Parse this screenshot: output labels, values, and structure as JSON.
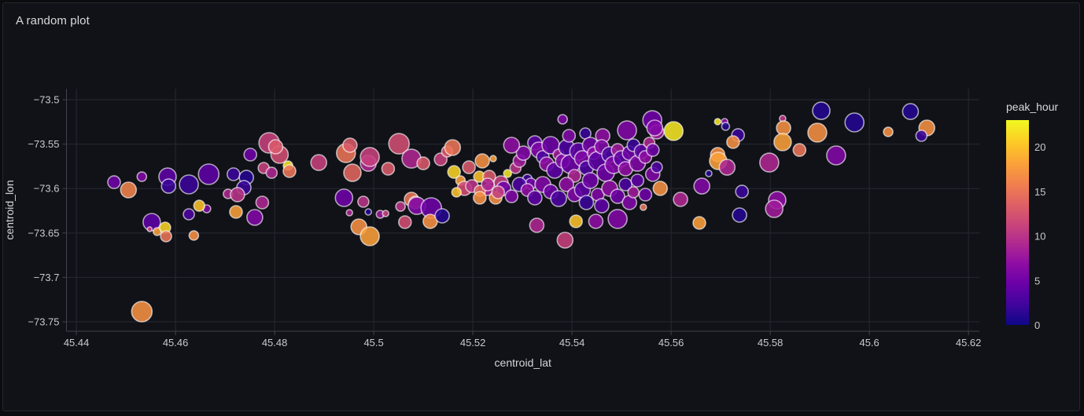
{
  "panel": {
    "title": "A random plot"
  },
  "colors": {
    "page_bg": "#0b0c0f",
    "panel_bg": "#111218",
    "panel_border": "#25272e",
    "grid": "#262932",
    "axis_line": "#3f434b",
    "tick_text": "#c8c9cb",
    "axis_title_text": "#d5d6d8",
    "title_text": "#d8d9da",
    "bubble_stroke": "rgba(255,255,255,0.62)"
  },
  "chart_data": {
    "type": "scatter",
    "title": "A random plot",
    "xlabel": "centroid_lat",
    "ylabel": "centroid_lon",
    "color_label": "peak_hour",
    "grid": true,
    "x_range": [
      45.438,
      45.6222
    ],
    "y_range": [
      -73.7606,
      -73.4876
    ],
    "x_tick_values": [
      45.44,
      45.46,
      45.48,
      45.5,
      45.52,
      45.54,
      45.56,
      45.58,
      45.6,
      45.62
    ],
    "x_tick_labels": [
      "45.44",
      "45.46",
      "45.48",
      "45.5",
      "45.52",
      "45.54",
      "45.56",
      "45.58",
      "45.6",
      "45.62"
    ],
    "y_tick_values": [
      -73.5,
      -73.55,
      -73.6,
      -73.65,
      -73.7,
      -73.75
    ],
    "y_tick_labels": [
      "−73.5",
      "−73.55",
      "−73.6",
      "−73.65",
      "−73.7",
      "−73.75"
    ],
    "color_range": [
      0,
      23
    ],
    "colorbar_tick_values": [
      0,
      5,
      10,
      15,
      20
    ],
    "colorbar_tick_labels": [
      "0",
      "5",
      "10",
      "15",
      "20"
    ],
    "colorscale": [
      [
        0.0,
        "#0d0887"
      ],
      [
        0.1,
        "#41049d"
      ],
      [
        0.2,
        "#6a00a8"
      ],
      [
        0.3,
        "#8f0da4"
      ],
      [
        0.4,
        "#b12a90"
      ],
      [
        0.5,
        "#cc4778"
      ],
      [
        0.6,
        "#e16462"
      ],
      [
        0.7,
        "#f2844b"
      ],
      [
        0.8,
        "#fca636"
      ],
      [
        0.9,
        "#fcce25"
      ],
      [
        1.0,
        "#f0f921"
      ]
    ],
    "point_fields": [
      "centroid_lat",
      "centroid_lon",
      "peak_hour",
      "size_px"
    ],
    "points": [
      [
        45.4476,
        -73.5928,
        5,
        8
      ],
      [
        45.4505,
        -73.6016,
        16,
        10
      ],
      [
        45.4532,
        -73.5866,
        6,
        6
      ],
      [
        45.4584,
        -73.5866,
        4,
        11
      ],
      [
        45.4586,
        -73.5972,
        2,
        9
      ],
      [
        45.4552,
        -73.6378,
        4,
        11
      ],
      [
        45.4548,
        -73.6458,
        11,
        3
      ],
      [
        45.4563,
        -73.6484,
        18,
        5
      ],
      [
        45.4579,
        -73.644,
        21,
        7
      ],
      [
        45.4581,
        -73.6537,
        15,
        7
      ],
      [
        45.4532,
        -73.7385,
        17,
        13
      ],
      [
        45.4627,
        -73.5954,
        2,
        12
      ],
      [
        45.4667,
        -73.5839,
        4,
        13
      ],
      [
        45.4637,
        -73.6528,
        17,
        6
      ],
      [
        45.4627,
        -73.629,
        3,
        7
      ],
      [
        45.4663,
        -73.6228,
        6,
        5
      ],
      [
        45.4648,
        -73.6193,
        20,
        7
      ],
      [
        45.4706,
        -73.606,
        9,
        6
      ],
      [
        45.4717,
        -73.5839,
        2,
        8
      ],
      [
        45.4743,
        -73.5875,
        1,
        9
      ],
      [
        45.4738,
        -73.599,
        2,
        9
      ],
      [
        45.4725,
        -73.6069,
        10,
        9
      ],
      [
        45.4722,
        -73.6263,
        18,
        8
      ],
      [
        45.476,
        -73.6325,
        6,
        10
      ],
      [
        45.4775,
        -73.6157,
        9,
        8
      ],
      [
        45.4789,
        -73.5486,
        11,
        13
      ],
      [
        45.481,
        -73.5618,
        12,
        11
      ],
      [
        45.4802,
        -73.553,
        13,
        9
      ],
      [
        45.4751,
        -73.5618,
        5,
        8
      ],
      [
        45.4778,
        -73.5768,
        11,
        7
      ],
      [
        45.4794,
        -73.5822,
        9,
        7
      ],
      [
        45.4827,
        -73.5742,
        22,
        6
      ],
      [
        45.483,
        -73.5804,
        15,
        8
      ],
      [
        45.4889,
        -73.5707,
        11,
        10
      ],
      [
        45.4944,
        -73.5601,
        15,
        12
      ],
      [
        45.4952,
        -73.5512,
        13,
        9
      ],
      [
        45.4957,
        -73.5822,
        14,
        11
      ],
      [
        45.4989,
        -73.5716,
        9,
        10
      ],
      [
        45.4992,
        -73.5645,
        11,
        12
      ],
      [
        45.5029,
        -73.5777,
        13,
        8
      ],
      [
        45.5051,
        -73.5495,
        12,
        13
      ],
      [
        45.5076,
        -73.5663,
        9,
        12
      ],
      [
        45.51,
        -73.5716,
        13,
        8
      ],
      [
        45.5135,
        -73.5671,
        11,
        8
      ],
      [
        45.5148,
        -73.5583,
        13,
        7
      ],
      [
        45.5159,
        -73.5539,
        15,
        10
      ],
      [
        45.5162,
        -73.5813,
        21,
        8
      ],
      [
        45.5175,
        -73.591,
        18,
        6
      ],
      [
        45.5192,
        -73.576,
        13,
        8
      ],
      [
        45.5213,
        -73.5866,
        20,
        7
      ],
      [
        45.5219,
        -73.5689,
        17,
        9
      ],
      [
        45.5241,
        -73.5663,
        18,
        4
      ],
      [
        45.5233,
        -73.5866,
        13,
        8
      ],
      [
        45.5257,
        -73.5936,
        11,
        9
      ],
      [
        45.527,
        -73.583,
        22,
        5
      ],
      [
        45.5286,
        -73.5768,
        10,
        7
      ],
      [
        45.5294,
        -73.5689,
        8,
        8
      ],
      [
        45.5302,
        -73.5601,
        6,
        9
      ],
      [
        45.5278,
        -73.5512,
        7,
        10
      ],
      [
        45.531,
        -73.5893,
        2,
        6
      ],
      [
        45.5317,
        -73.5945,
        5,
        7
      ],
      [
        45.5325,
        -73.5486,
        4,
        9
      ],
      [
        45.5333,
        -73.5566,
        6,
        10
      ],
      [
        45.5341,
        -73.5645,
        3,
        8
      ],
      [
        45.5349,
        -73.5724,
        7,
        9
      ],
      [
        45.5357,
        -73.5512,
        5,
        11
      ],
      [
        45.5365,
        -73.5795,
        4,
        10
      ],
      [
        45.5373,
        -73.5618,
        8,
        7
      ],
      [
        45.5381,
        -73.5689,
        6,
        9
      ],
      [
        45.5389,
        -73.5539,
        3,
        10
      ],
      [
        45.5394,
        -73.5406,
        6,
        8
      ],
      [
        45.5427,
        -73.538,
        2,
        7
      ],
      [
        45.5462,
        -73.5406,
        7,
        9
      ],
      [
        45.5511,
        -73.5345,
        6,
        12
      ],
      [
        45.5562,
        -73.523,
        5,
        12
      ],
      [
        45.5605,
        -73.5353,
        22,
        12
      ],
      [
        45.5397,
        -73.5724,
        5,
        12
      ],
      [
        45.5405,
        -73.5857,
        9,
        8
      ],
      [
        45.5413,
        -73.5583,
        4,
        11
      ],
      [
        45.5421,
        -73.5663,
        6,
        10
      ],
      [
        45.5429,
        -73.5768,
        3,
        9
      ],
      [
        45.5437,
        -73.5512,
        5,
        10
      ],
      [
        45.5444,
        -73.5601,
        7,
        8
      ],
      [
        45.5452,
        -73.5689,
        4,
        12
      ],
      [
        45.546,
        -73.553,
        6,
        9
      ],
      [
        45.5468,
        -73.5822,
        5,
        11
      ],
      [
        45.5476,
        -73.5618,
        3,
        10
      ],
      [
        45.5484,
        -73.5733,
        6,
        11
      ],
      [
        45.5492,
        -73.5566,
        8,
        8
      ],
      [
        45.55,
        -73.5663,
        4,
        10
      ],
      [
        45.5508,
        -73.5777,
        7,
        9
      ],
      [
        45.5516,
        -73.5601,
        5,
        9
      ],
      [
        45.5524,
        -73.5512,
        2,
        8
      ],
      [
        45.5532,
        -73.5716,
        6,
        10
      ],
      [
        45.554,
        -73.5583,
        4,
        9
      ],
      [
        45.5548,
        -73.5645,
        7,
        8
      ],
      [
        45.5556,
        -73.5486,
        9,
        7
      ],
      [
        45.5563,
        -73.5566,
        5,
        8
      ],
      [
        45.5571,
        -73.5362,
        8,
        9
      ],
      [
        45.523,
        -73.6016,
        9,
        7
      ],
      [
        45.5246,
        -73.6104,
        17,
        8
      ],
      [
        45.5262,
        -73.5998,
        5,
        9
      ],
      [
        45.5278,
        -73.6087,
        6,
        8
      ],
      [
        45.5294,
        -73.5954,
        3,
        9
      ],
      [
        45.531,
        -73.6016,
        7,
        8
      ],
      [
        45.5325,
        -73.6104,
        4,
        9
      ],
      [
        45.5329,
        -73.6413,
        9,
        9
      ],
      [
        45.5341,
        -73.5954,
        6,
        10
      ],
      [
        45.5357,
        -73.6034,
        5,
        9
      ],
      [
        45.5373,
        -73.6113,
        3,
        10
      ],
      [
        45.5386,
        -73.6581,
        11,
        10
      ],
      [
        45.5389,
        -73.5954,
        7,
        9
      ],
      [
        45.5405,
        -73.6069,
        6,
        9
      ],
      [
        45.5408,
        -73.6369,
        20,
        8
      ],
      [
        45.5421,
        -73.6016,
        4,
        10
      ],
      [
        45.5429,
        -73.6157,
        2,
        9
      ],
      [
        45.5448,
        -73.6369,
        7,
        9
      ],
      [
        45.5437,
        -73.591,
        5,
        10
      ],
      [
        45.5452,
        -73.6069,
        6,
        8
      ],
      [
        45.546,
        -73.6193,
        4,
        9
      ],
      [
        45.5476,
        -73.5998,
        7,
        10
      ],
      [
        45.5492,
        -73.6342,
        6,
        12
      ],
      [
        45.5492,
        -73.6087,
        5,
        9
      ],
      [
        45.5508,
        -73.5954,
        3,
        8
      ],
      [
        45.5516,
        -73.6157,
        6,
        9
      ],
      [
        45.5524,
        -73.6042,
        8,
        7
      ],
      [
        45.5532,
        -73.591,
        4,
        8
      ],
      [
        45.5544,
        -73.621,
        15,
        4
      ],
      [
        45.5548,
        -73.6069,
        5,
        8
      ],
      [
        45.5578,
        -73.5998,
        17,
        9
      ],
      [
        45.5619,
        -73.6122,
        9,
        9
      ],
      [
        45.5563,
        -73.5839,
        6,
        9
      ],
      [
        45.5571,
        -73.576,
        3,
        7
      ],
      [
        45.5567,
        -73.5318,
        6,
        10
      ],
      [
        45.5694,
        -73.5247,
        22,
        4
      ],
      [
        45.5708,
        -73.5247,
        7,
        4
      ],
      [
        45.571,
        -73.53,
        1,
        5
      ],
      [
        45.5735,
        -73.5398,
        2,
        8
      ],
      [
        45.5725,
        -73.5477,
        17,
        8
      ],
      [
        45.5694,
        -73.5618,
        17,
        9
      ],
      [
        45.5695,
        -73.5689,
        18,
        11
      ],
      [
        45.5713,
        -73.576,
        9,
        10
      ],
      [
        45.5676,
        -73.583,
        1,
        4
      ],
      [
        45.5662,
        -73.5972,
        6,
        10
      ],
      [
        45.5743,
        -73.6034,
        2,
        8
      ],
      [
        45.5825,
        -73.5212,
        10,
        4
      ],
      [
        45.5827,
        -73.5318,
        17,
        9
      ],
      [
        45.5825,
        -73.5477,
        18,
        11
      ],
      [
        45.5859,
        -73.5566,
        15,
        8
      ],
      [
        45.5895,
        -73.5371,
        17,
        12
      ],
      [
        45.5933,
        -73.5627,
        6,
        12
      ],
      [
        45.597,
        -73.5256,
        1,
        12
      ],
      [
        45.5798,
        -73.5707,
        9,
        12
      ],
      [
        45.5814,
        -73.6131,
        7,
        11
      ],
      [
        45.5738,
        -73.6298,
        1,
        9
      ],
      [
        45.5808,
        -73.6228,
        8,
        11
      ],
      [
        45.5657,
        -73.6387,
        18,
        8
      ],
      [
        45.6083,
        -73.5133,
        1,
        10
      ],
      [
        45.6038,
        -73.5362,
        17,
        6
      ],
      [
        45.6116,
        -73.5318,
        17,
        10
      ],
      [
        45.6105,
        -73.5406,
        2,
        7
      ],
      [
        45.5903,
        -73.5124,
        1,
        11
      ],
      [
        45.5381,
        -73.5221,
        6,
        6
      ],
      [
        45.497,
        -73.6431,
        17,
        10
      ],
      [
        45.4992,
        -73.6537,
        18,
        12
      ],
      [
        45.4979,
        -73.6148,
        10,
        7
      ],
      [
        45.494,
        -73.6104,
        5,
        11
      ],
      [
        45.4989,
        -73.6263,
        1,
        4
      ],
      [
        45.5013,
        -73.629,
        8,
        5
      ],
      [
        45.5024,
        -73.6281,
        11,
        4
      ],
      [
        45.5054,
        -73.6202,
        10,
        6
      ],
      [
        45.4951,
        -73.6272,
        9,
        4
      ],
      [
        45.5076,
        -73.6122,
        15,
        9
      ],
      [
        45.5084,
        -73.6157,
        13,
        8
      ],
      [
        45.5087,
        -73.6193,
        6,
        11
      ],
      [
        45.5116,
        -73.6219,
        5,
        13
      ],
      [
        45.5114,
        -73.6369,
        17,
        9
      ],
      [
        45.5138,
        -73.6307,
        1,
        9
      ],
      [
        45.5063,
        -73.6378,
        12,
        8
      ],
      [
        45.5183,
        -73.5998,
        12,
        9
      ],
      [
        45.5198,
        -73.5972,
        10,
        8
      ],
      [
        45.5214,
        -73.6025,
        14,
        7
      ],
      [
        45.523,
        -73.5954,
        9,
        8
      ],
      [
        45.5251,
        -73.6042,
        11,
        8
      ],
      [
        45.5214,
        -73.6104,
        17,
        8
      ],
      [
        45.5167,
        -73.6042,
        20,
        6
      ]
    ]
  }
}
